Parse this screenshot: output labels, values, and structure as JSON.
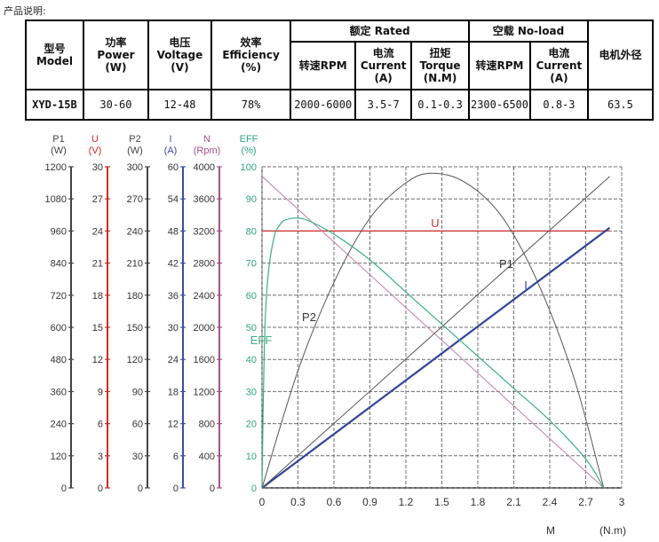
{
  "caption": "产品说明:",
  "spec_table": {
    "h_model": "型号",
    "h_model_en": "Model",
    "h_power": "功率",
    "h_power_en": "Power",
    "h_power_unit": "(W)",
    "h_voltage": "电压",
    "h_voltage_en": "Voltage",
    "h_voltage_unit": "(V)",
    "h_eff": "效率",
    "h_eff_en": "Efficiency",
    "h_eff_unit": "(%)",
    "h_rated": "额定 Rated",
    "h_noload": "空载 No-load",
    "h_diam": "电机外径",
    "h_rpm": "转速RPM",
    "h_current": "电流",
    "h_current_en": "Current",
    "h_current_unit": "(A)",
    "h_torque": "扭矩",
    "h_torque_en": "Torque",
    "h_torque_unit": "(N.M)",
    "h_rpm2": "转速RPM",
    "h_current2": "电流",
    "h_current2_en": "Current",
    "h_current2_unit": "(A)",
    "row": {
      "model": "XYD-15B",
      "power": "30-60",
      "voltage": "12-48",
      "efficiency": "78%",
      "rated_rpm": "2000-6000",
      "rated_current": "3.5-7",
      "rated_torque": "0.1-0.3",
      "noload_rpm": "2300-6500",
      "noload_current": "0.8-3",
      "diameter": "63.5"
    }
  },
  "chart_data": {
    "type": "line",
    "xlabel": "M",
    "xunit": "(N.m)",
    "xlim": [
      0,
      3.0
    ],
    "x_ticks": [
      "0",
      "0.3",
      "0.6",
      "0.9",
      "1.2",
      "1.5",
      "1.8",
      "2.1",
      "2.4",
      "2.7",
      "3"
    ],
    "grid_ticks": [
      "0",
      "10",
      "20",
      "30",
      "40",
      "50",
      "60",
      "70",
      "80",
      "90",
      "100"
    ],
    "grid": true,
    "axes": [
      {
        "name": "P1",
        "unit": "(W)",
        "color": "#444444",
        "ticks": [
          "0",
          "120",
          "240",
          "360",
          "480",
          "600",
          "720",
          "840",
          "960",
          "1080",
          "1200"
        ]
      },
      {
        "name": "U",
        "unit": "(V)",
        "color": "#cc2a2a",
        "ticks": [
          "0",
          "3",
          "6",
          "9",
          "12",
          "15",
          "18",
          "21",
          "24",
          "27",
          "30"
        ]
      },
      {
        "name": "P2",
        "unit": "(W)",
        "color": "#444444",
        "ticks": [
          "0",
          "30",
          "60",
          "90",
          "120",
          "150",
          "180",
          "210",
          "240",
          "270",
          "300"
        ]
      },
      {
        "name": "I",
        "unit": "(A)",
        "color": "#3a4f9c",
        "ticks": [
          "0",
          "6",
          "12",
          "18",
          "24",
          "30",
          "36",
          "42",
          "48",
          "54",
          "60"
        ]
      },
      {
        "name": "N",
        "unit": "(Rpm)",
        "color": "#a84f8c",
        "ticks": [
          "0",
          "400",
          "800",
          "1200",
          "1600",
          "2000",
          "2400",
          "2800",
          "3200",
          "3600",
          "4000"
        ]
      },
      {
        "name": "EFF",
        "unit": "(%)",
        "color": "#2fa67a",
        "ticks": [
          "0",
          "10",
          "20",
          "30",
          "40",
          "50",
          "60",
          "70",
          "80",
          "90",
          "100"
        ]
      }
    ],
    "series": [
      {
        "name": "U",
        "label": "U",
        "color": "#cc2a2a",
        "width": 1.2,
        "x": [
          0,
          2.9
        ],
        "y": [
          80,
          80
        ]
      },
      {
        "name": "I",
        "label": "I",
        "color": "#2f449a",
        "width": 2.2,
        "x": [
          0,
          2.9
        ],
        "y": [
          0,
          81
        ]
      },
      {
        "name": "P1",
        "label": "P1",
        "color": "#555555",
        "width": 1,
        "x": [
          0,
          2.9
        ],
        "y": [
          0,
          97
        ]
      },
      {
        "name": "N",
        "label": "",
        "color": "#c07aa8",
        "width": 1,
        "x": [
          0,
          2.85
        ],
        "y": [
          97,
          0
        ]
      },
      {
        "name": "P2",
        "label": "P2",
        "color": "#555555",
        "width": 1,
        "x": [
          0,
          0.3,
          0.6,
          0.9,
          1.2,
          1.42,
          1.7,
          2.0,
          2.3,
          2.6,
          2.85
        ],
        "y": [
          0,
          36.5,
          64,
          84,
          95,
          98,
          95,
          84.5,
          64,
          34.5,
          0
        ]
      },
      {
        "name": "EFF",
        "label": "EFF",
        "color": "#3cae82",
        "width": 1.2,
        "x": [
          0,
          0.02,
          0.05,
          0.1,
          0.15,
          0.2,
          0.3,
          0.4,
          0.6,
          0.9,
          1.2,
          1.5,
          1.8,
          2.1,
          2.4,
          2.7,
          2.85
        ],
        "y": [
          0,
          45,
          66,
          78,
          82,
          83.5,
          84,
          83,
          79,
          71,
          61,
          51,
          41,
          31,
          21,
          9,
          0
        ]
      }
    ]
  }
}
